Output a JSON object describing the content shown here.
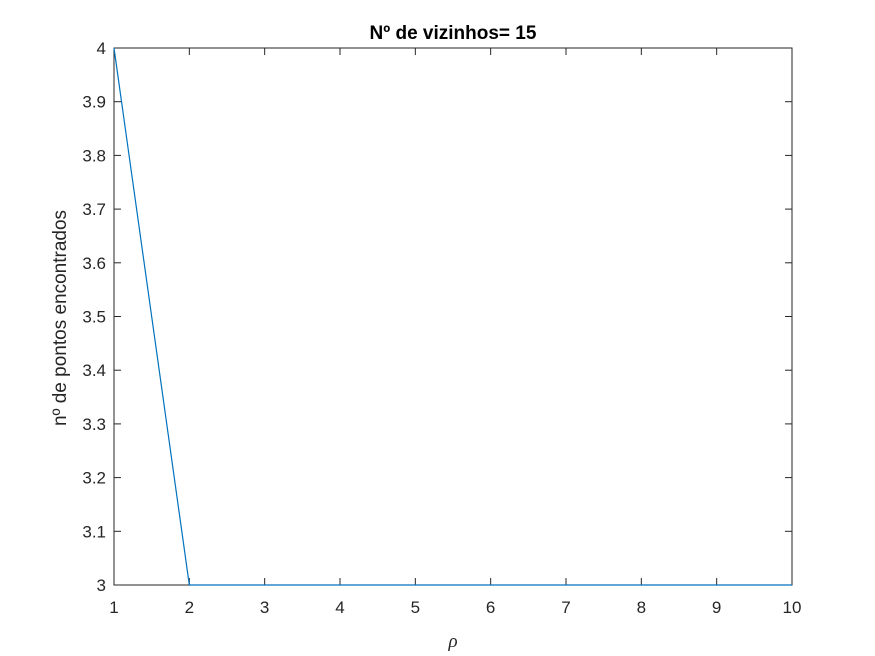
{
  "chart_data": {
    "type": "line",
    "title": "Nº de vizinhos= 15",
    "xlabel": "ρ",
    "ylabel": "nº de pontos encontrados",
    "xlim": [
      1,
      10
    ],
    "ylim": [
      3,
      4
    ],
    "x_ticks": [
      "1",
      "2",
      "3",
      "4",
      "5",
      "6",
      "7",
      "8",
      "9",
      "10"
    ],
    "y_ticks": [
      "3",
      "3.1",
      "3.2",
      "3.3",
      "3.4",
      "3.5",
      "3.6",
      "3.7",
      "3.8",
      "3.9",
      "4"
    ],
    "grid": false,
    "series": [
      {
        "x": [
          1,
          2,
          3,
          4,
          5,
          6,
          7,
          8,
          9,
          10
        ],
        "y": [
          4,
          3,
          3,
          3,
          3,
          3,
          3,
          3,
          3,
          3
        ]
      }
    ],
    "colors": {
      "line": "#0072BD",
      "axis": "#262626"
    }
  }
}
